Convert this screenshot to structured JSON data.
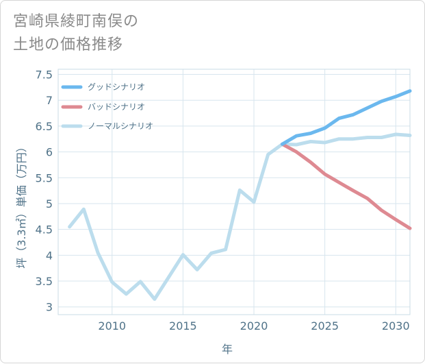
{
  "title": {
    "line1": "宮崎県綾町南俣の",
    "line2": "土地の価格推移"
  },
  "chart_data": {
    "type": "line",
    "title": "宮崎県綾町南俣の土地の価格推移",
    "xlabel": "年",
    "ylabel": "坪（3.3㎡）単価（万円）",
    "xlim": [
      2006.2,
      2031
    ],
    "ylim": [
      2.85,
      7.6
    ],
    "xticks": [
      2010,
      2015,
      2020,
      2025,
      2030
    ],
    "yticks": [
      3,
      3.5,
      4,
      4.5,
      5,
      5.5,
      6,
      6.5,
      7,
      7.5
    ],
    "ytick_labels": [
      "3",
      "3.5",
      "4",
      "4.5",
      "5",
      "5.5",
      "6",
      "6.5",
      "7",
      "7.5"
    ],
    "xtick_labels": [
      "2010",
      "2015",
      "2020",
      "2025",
      "2030"
    ],
    "grid": true,
    "legend_position": "top-left",
    "series": [
      {
        "name": "グッドシナリオ",
        "color": "#6bb8ee",
        "x": [
          2022,
          2023,
          2024,
          2025,
          2026,
          2027,
          2028,
          2029,
          2030,
          2031
        ],
        "values": [
          6.15,
          6.31,
          6.36,
          6.46,
          6.65,
          6.72,
          6.85,
          6.98,
          7.07,
          7.18
        ]
      },
      {
        "name": "バッドシナリオ",
        "color": "#de8a92",
        "x": [
          2022,
          2023,
          2024,
          2025,
          2026,
          2027,
          2028,
          2029,
          2030,
          2031
        ],
        "values": [
          6.15,
          6.0,
          5.8,
          5.57,
          5.41,
          5.25,
          5.1,
          4.87,
          4.69,
          4.52
        ]
      },
      {
        "name": "ノーマルシナリオ",
        "color": "#bcdded",
        "x": [
          2007,
          2008,
          2009,
          2010,
          2011,
          2012,
          2013,
          2014,
          2015,
          2016,
          2017,
          2018,
          2019,
          2020,
          2021,
          2022,
          2023,
          2024,
          2025,
          2026,
          2027,
          2028,
          2029,
          2030,
          2031
        ],
        "values": [
          4.55,
          4.89,
          4.05,
          3.48,
          3.25,
          3.49,
          3.15,
          3.58,
          4.01,
          3.72,
          4.04,
          4.11,
          5.26,
          5.03,
          5.95,
          6.15,
          6.14,
          6.2,
          6.18,
          6.25,
          6.25,
          6.28,
          6.28,
          6.34,
          6.32
        ]
      }
    ]
  }
}
